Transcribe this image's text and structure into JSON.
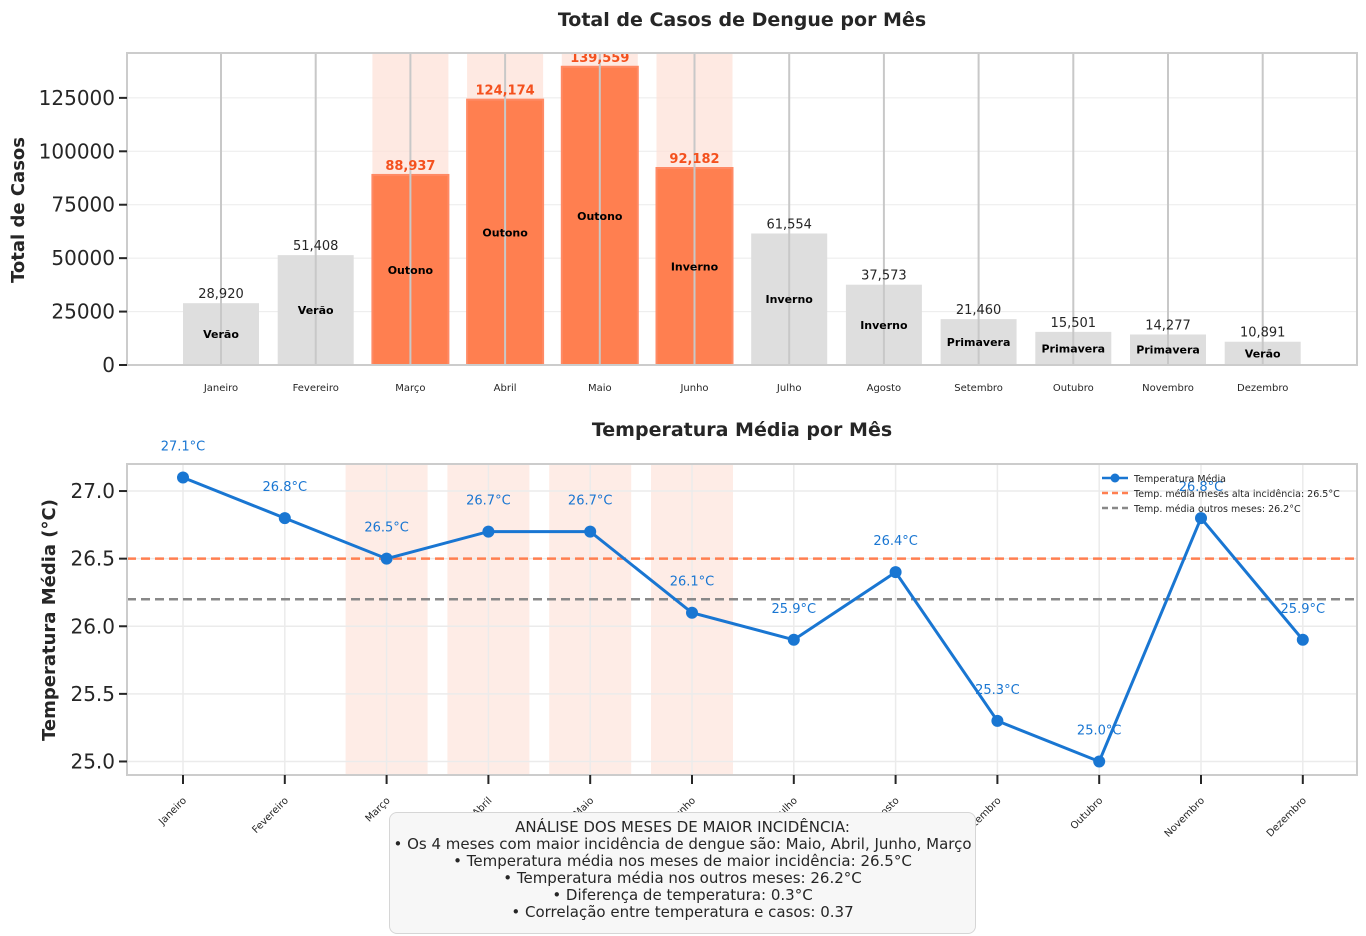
{
  "chart_data": [
    {
      "type": "bar",
      "title": "Total de Casos de Dengue por Mês",
      "xlabel": "",
      "ylabel": "Total de Casos",
      "ylim": [
        0,
        146000
      ],
      "yticks": [
        0,
        25000,
        50000,
        75000,
        100000,
        125000
      ],
      "grid": true,
      "categories": [
        "Janeiro",
        "Fevereiro",
        "Março",
        "Abril",
        "Maio",
        "Junho",
        "Julho",
        "Agosto",
        "Setembro",
        "Outubro",
        "Novembro",
        "Dezembro"
      ],
      "values": [
        28920,
        51408,
        88937,
        124174,
        139559,
        92182,
        61554,
        37573,
        21460,
        15501,
        14277,
        10891
      ],
      "value_labels": [
        "28,920",
        "51,408",
        "88,937",
        "124,174",
        "139,559",
        "92,182",
        "61,554",
        "37,573",
        "21,460",
        "15,501",
        "14,277",
        "10,891"
      ],
      "seasons": [
        "Verão",
        "Verão",
        "Outono",
        "Outono",
        "Outono",
        "Inverno",
        "Inverno",
        "Inverno",
        "Primavera",
        "Primavera",
        "Primavera",
        "Verão"
      ],
      "highlighted": [
        false,
        false,
        true,
        true,
        true,
        true,
        false,
        false,
        false,
        false,
        false,
        false
      ],
      "colors": {
        "normal": "#dedede",
        "highlight": "#ff7f50",
        "highlight_label": "#f4511e",
        "band": "#fde0d6"
      }
    },
    {
      "type": "line",
      "title": "Temperatura Média por Mês",
      "xlabel": "",
      "ylabel": "Temperatura Média (°C)",
      "ylim": [
        24.9,
        27.2
      ],
      "yticks": [
        25.0,
        25.5,
        26.0,
        26.5,
        27.0
      ],
      "ytick_labels": [
        "25.0",
        "25.5",
        "26.0",
        "26.5",
        "27.0"
      ],
      "grid": true,
      "categories": [
        "Janeiro",
        "Fevereiro",
        "Março",
        "Abril",
        "Maio",
        "Junho",
        "Julho",
        "Agosto",
        "Setembro",
        "Outubro",
        "Novembro",
        "Dezembro"
      ],
      "highlighted": [
        false,
        false,
        true,
        true,
        true,
        true,
        false,
        false,
        false,
        false,
        false,
        false
      ],
      "series": [
        {
          "name": "Temperatura Média",
          "values": [
            27.1,
            26.8,
            26.5,
            26.7,
            26.7,
            26.1,
            25.9,
            26.4,
            25.3,
            25.0,
            26.8,
            25.9
          ],
          "labels": [
            "27.1°C",
            "26.8°C",
            "26.5°C",
            "26.7°C",
            "26.7°C",
            "26.1°C",
            "25.9°C",
            "26.4°C",
            "25.3°C",
            "25.0°C",
            "26.8°C",
            "25.9°C"
          ],
          "color": "#1976d2"
        }
      ],
      "reference_lines": [
        {
          "name": "Temp. média meses alta incidência: 26.5°C",
          "value": 26.5,
          "color": "#ff7f50"
        },
        {
          "name": "Temp. média outros meses: 26.2°C",
          "value": 26.2,
          "color": "#888888"
        }
      ],
      "legend_position": "top-right"
    }
  ],
  "summary": {
    "lines": [
      "ANÁLISE DOS MESES DE MAIOR INCIDÊNCIA:",
      "• Os 4 meses com maior incidência de dengue são: Maio, Abril, Junho, Março",
      "• Temperatura média nos meses de maior incidência: 26.5°C",
      "• Temperatura média nos outros meses: 26.2°C",
      "• Diferença de temperatura: 0.3°C",
      "• Correlação entre temperatura e casos: 0.37"
    ]
  }
}
